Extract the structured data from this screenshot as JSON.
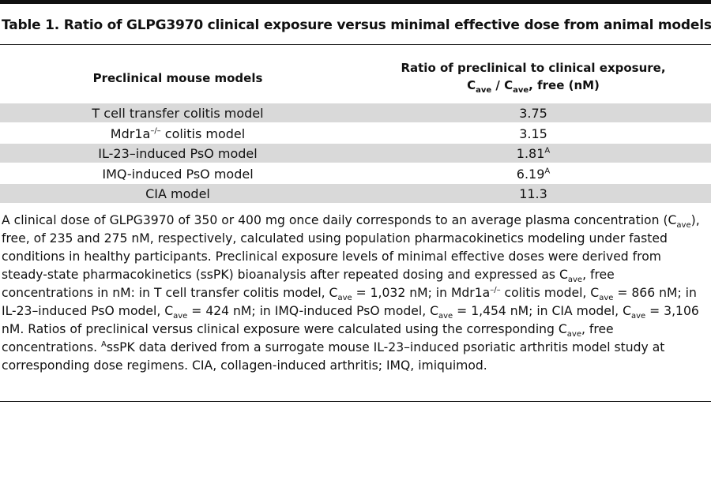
{
  "title": "Table 1. Ratio of GLPG3970 clinical exposure versus minimal effective dose from animal models",
  "header": {
    "col1": "Preclinical mouse models",
    "col2_line1": "Ratio of preclinical to clinical exposure,",
    "col2_line2_a": "C",
    "col2_line2_sub1": "ave",
    "col2_line2_b": " / C",
    "col2_line2_sub2": "ave",
    "col2_line2_c": ", free (nM)"
  },
  "rows": [
    {
      "model": "T cell transfer colitis model",
      "model_sup": "",
      "model_after": "",
      "ratio": "3.75",
      "ratio_sup": ""
    },
    {
      "model": "Mdr1a",
      "model_sup": "–/–",
      "model_after": " colitis model",
      "ratio": "3.15",
      "ratio_sup": ""
    },
    {
      "model": "IL-23–induced PsO model",
      "model_sup": "",
      "model_after": "",
      "ratio": "1.81",
      "ratio_sup": "A"
    },
    {
      "model": "IMQ-induced PsO model",
      "model_sup": "",
      "model_after": "",
      "ratio": "6.19",
      "ratio_sup": "A"
    },
    {
      "model": "CIA model",
      "model_sup": "",
      "model_after": "",
      "ratio": "11.3",
      "ratio_sup": ""
    }
  ],
  "footnote": {
    "t1": "A clinical dose of GLPG3970 of 350 or 400 mg once daily corresponds to an average plasma concentration (C",
    "s1": "ave",
    "t2": "), free, of 235 and 275 nM, respectively, calculated using population pharmacokinetics modeling under fasted conditions in healthy participants. Preclinical exposure levels of minimal effective doses were derived from steady-state pharmacokinetics (ssPK) bioanalysis after repeated dosing and expressed as C",
    "s2": "ave",
    "t3": ", free concentrations in nM: in T cell transfer colitis model, C",
    "s3": "ave",
    "t4": " = 1,032 nM; in Mdr1a",
    "sup1": "–/–",
    "t5": " colitis model, C",
    "s4": "ave",
    "t6": " = 866 nM; in IL-23–induced PsO model, C",
    "s5": "ave",
    "t7": " = 424 nM; in IMQ-induced PsO model, C",
    "s6": "ave",
    "t8": " = 1,454 nM; in CIA model, C",
    "s7": "ave",
    "t9": " = 3,106 nM. Ratios of preclinical versus clinical exposure were calculated using the corresponding C",
    "s8": "ave",
    "t10": ", free concentrations. ",
    "sup2": "A",
    "t11": "ssPK data derived from a surrogate mouse IL-23–induced psoriatic arthritis model study at corresponding dose regimens. CIA, collagen-induced arthritis; IMQ, imiquimod."
  }
}
